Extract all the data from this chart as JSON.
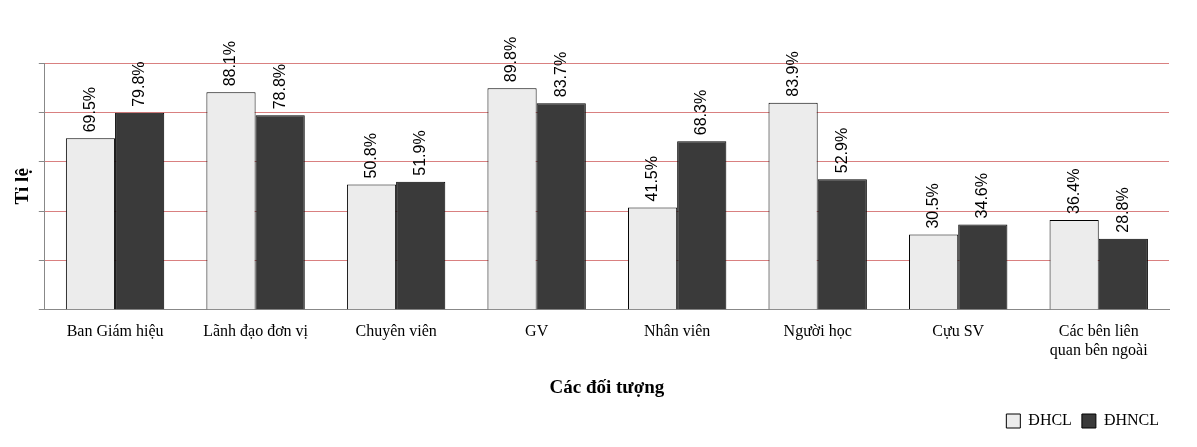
{
  "chart_data": {
    "type": "bar",
    "xlabel": "Các đối tượng",
    "ylabel": "Tỉ lệ",
    "categories": [
      "Ban Giám hiệu",
      "Lãnh đạo đơn vị",
      "Chuyên viên",
      "GV",
      "Nhân viên",
      "Người học",
      "Cựu SV",
      "Các bên liên quan bên ngoài"
    ],
    "series": [
      {
        "name": "ĐHCL",
        "color": "#ececec",
        "values": [
          69.5,
          88.1,
          50.8,
          89.8,
          41.5,
          83.9,
          30.5,
          36.4
        ],
        "value_labels": [
          "69.5%",
          "88.1%",
          "50.8%",
          "89.8%",
          "41.5%",
          "83.9%",
          "30.5%",
          "36.4%"
        ]
      },
      {
        "name": "ĐHNCL",
        "color": "#3a3a3a",
        "values": [
          79.8,
          78.8,
          51.9,
          83.7,
          68.3,
          52.9,
          34.6,
          28.8
        ],
        "value_labels": [
          "79.8%",
          "78.8%",
          "51.9%",
          "83.7%",
          "68.3%",
          "52.9%",
          "34.6%",
          "28.8%"
        ]
      }
    ],
    "ylim": [
      0,
      100
    ],
    "yticks": [
      {
        "value": 0,
        "label": null
      },
      {
        "value": 20,
        "label": null
      },
      {
        "value": 40,
        "label": null
      },
      {
        "value": 60,
        "label": null
      },
      {
        "value": 80,
        "label": null
      },
      {
        "value": 100,
        "label": null
      }
    ],
    "grid": "y",
    "legend": "bottom right",
    "tick_labels": "x"
  }
}
